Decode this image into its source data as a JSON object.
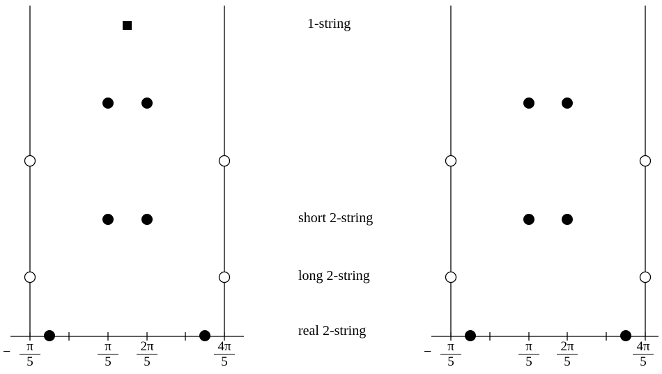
{
  "annotations": {
    "one_string": "1-string",
    "short_two_string": "short 2-string",
    "long_two_string": "long 2-string",
    "real_two_string": "real 2-string"
  },
  "ticks": {
    "minus_sign": "−",
    "t1_num": "π",
    "t1_den": "5",
    "t2_num": "π",
    "t2_den": "5",
    "t3_num": "2π",
    "t3_den": "5",
    "t4_num": "4π",
    "t4_den": "5"
  },
  "colors": {
    "ink": "#000000",
    "background": "#ffffff"
  }
}
